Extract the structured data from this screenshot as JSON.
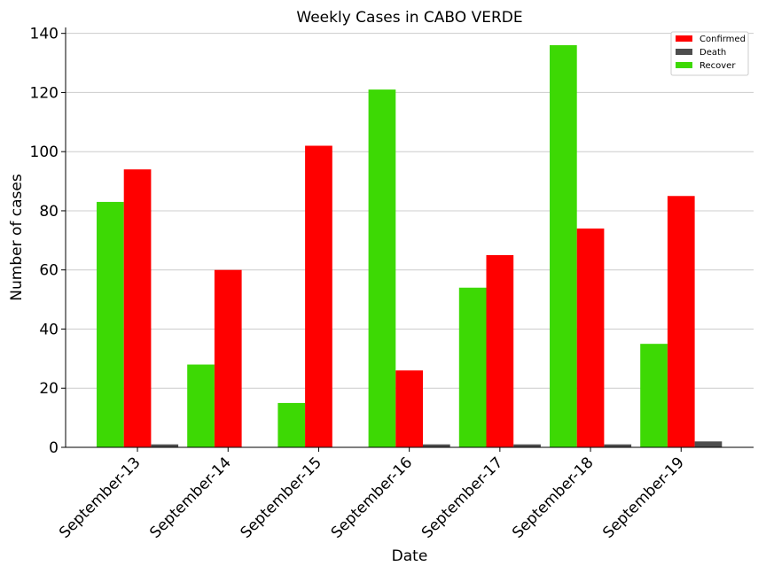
{
  "chart_data": {
    "type": "bar",
    "title": "Weekly Cases in CABO VERDE",
    "xlabel": "Date",
    "ylabel": "Number of cases",
    "categories": [
      "September-13",
      "September-14",
      "September-15",
      "September-16",
      "September-17",
      "September-18",
      "September-19"
    ],
    "series": [
      {
        "name": "Recover",
        "color": "#3dd904",
        "values": [
          83,
          28,
          15,
          121,
          54,
          136,
          35
        ]
      },
      {
        "name": "Confirmed",
        "color": "#ff0000",
        "values": [
          94,
          60,
          102,
          26,
          65,
          74,
          85
        ]
      },
      {
        "name": "Death",
        "color": "#4d4d4d",
        "values": [
          1,
          0,
          0,
          1,
          1,
          1,
          2
        ]
      }
    ],
    "legend_order": [
      "Confirmed",
      "Death",
      "Recover"
    ],
    "legend_position": "top-right",
    "ylim": [
      0,
      142
    ],
    "yticks": [
      0,
      20,
      40,
      60,
      80,
      100,
      120,
      140
    ],
    "grid": "horizontal"
  }
}
